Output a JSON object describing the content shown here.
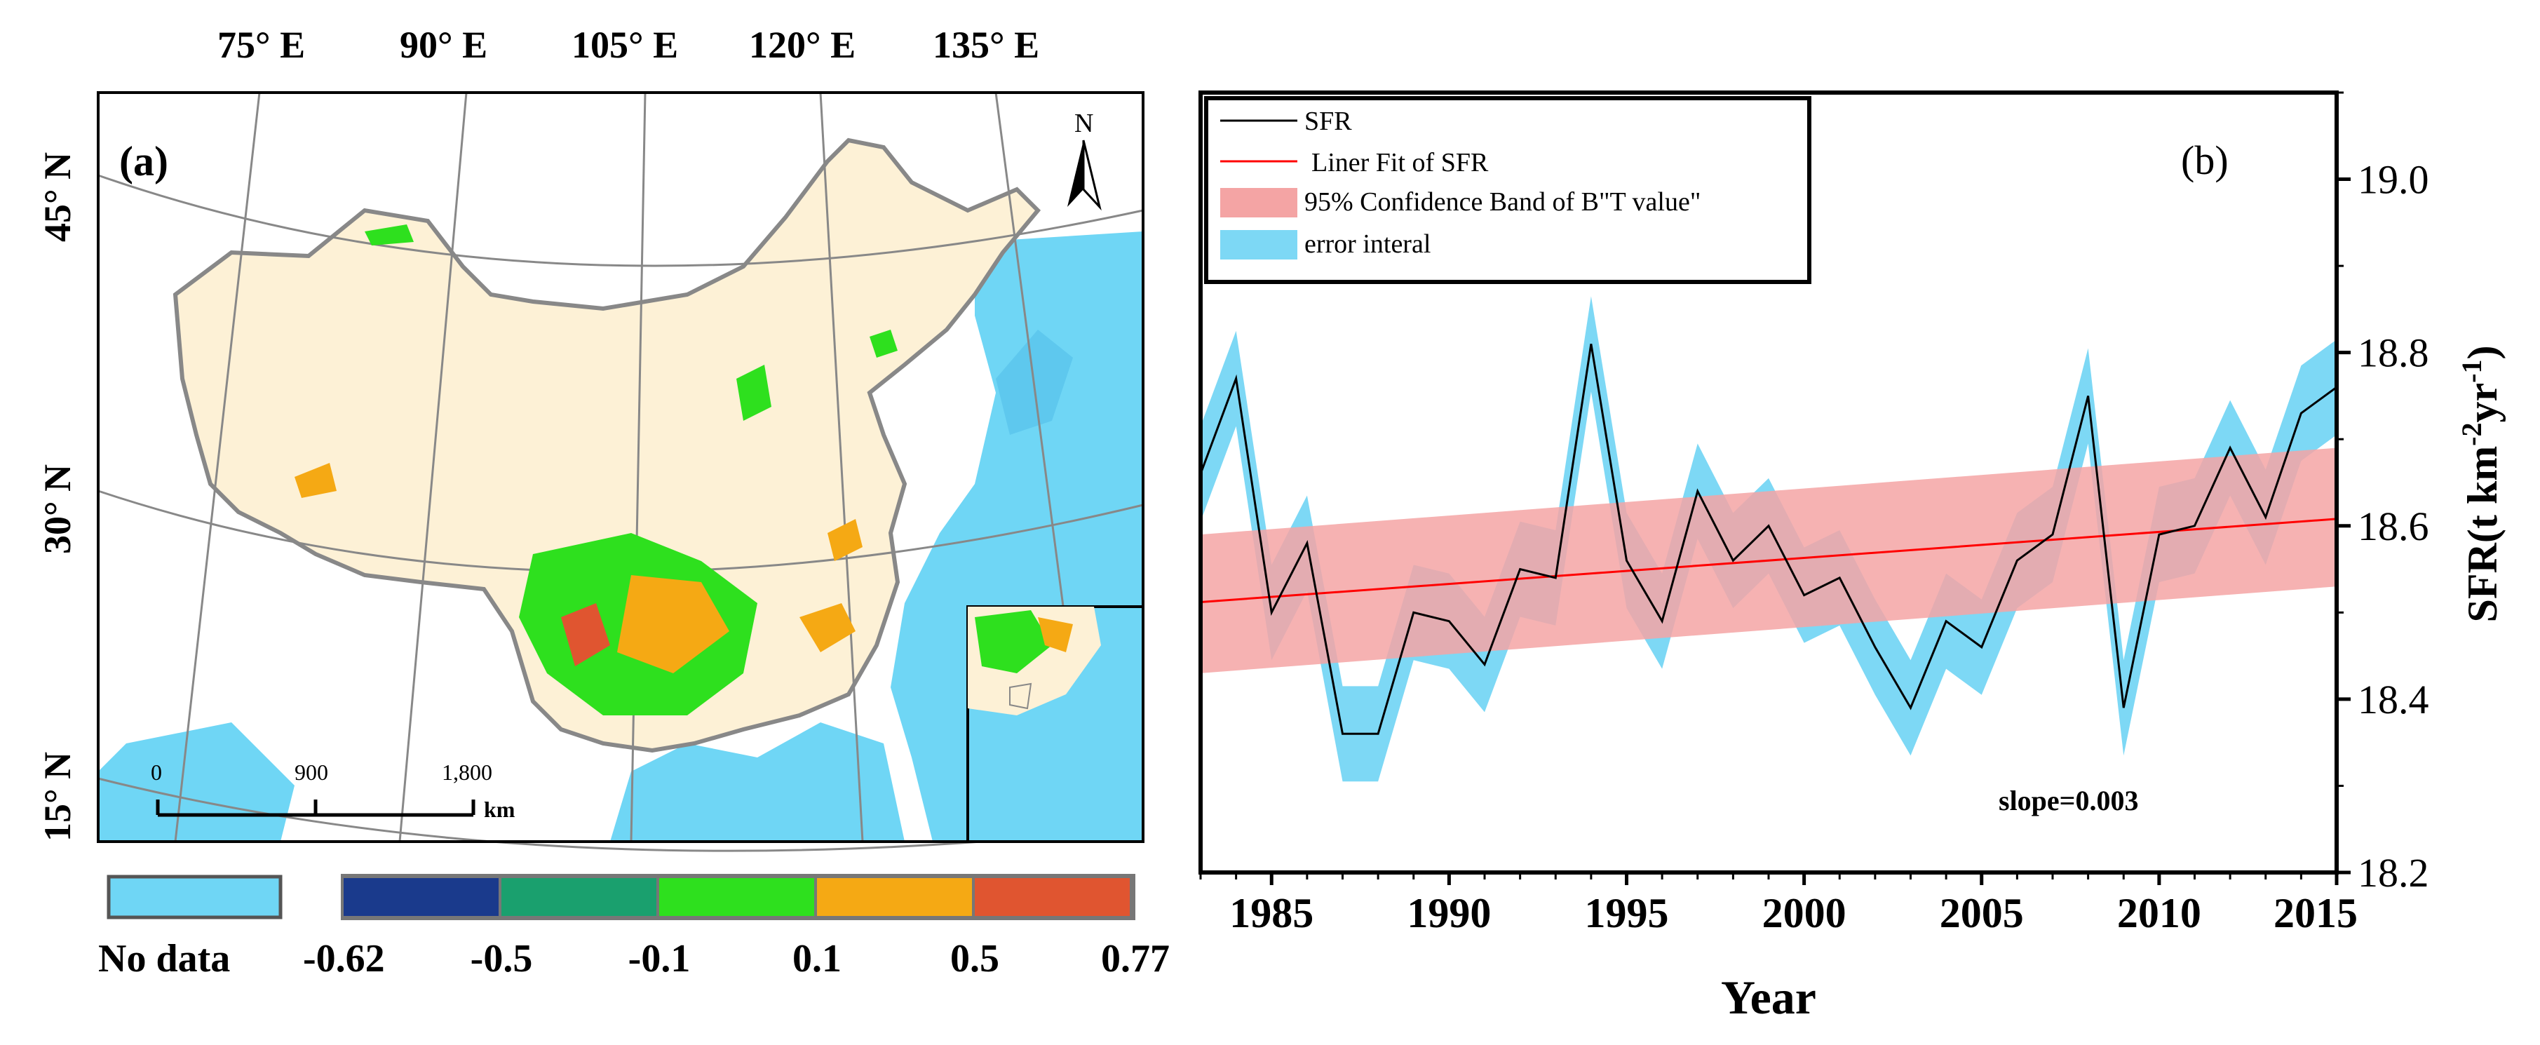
{
  "panel_a": {
    "label": "(a)",
    "north_label": "N",
    "longitude_labels": [
      "75° E",
      "90° E",
      "105° E",
      "120° E",
      "135° E"
    ],
    "latitude_labels": [
      "45° N",
      "30° N",
      "15° N"
    ],
    "scale_bar": {
      "ticks": [
        "0",
        "900",
        "1,800"
      ],
      "unit": "km"
    },
    "legend": {
      "no_data_label": "No data",
      "no_data_color": "#6fd6f5",
      "class_colors": [
        "#1a3a8c",
        "#1aa06e",
        "#2ee01e",
        "#f5a914",
        "#e05530"
      ],
      "break_labels": [
        "-0.62",
        "-0.5",
        "-0.1",
        "0.1",
        "0.5",
        "0.77"
      ]
    }
  },
  "chart_data": {
    "type": "line",
    "panel_label": "(b)",
    "xlabel": "Year",
    "ylabel": "SFR(t km-2yr-1)",
    "ylabel_parts": {
      "base": "SFR(t km",
      "sup1": "-2",
      "mid": "yr",
      "sup2": "-1",
      "end": ")"
    },
    "xlim": [
      1983,
      2015
    ],
    "ylim": [
      18.2,
      19.1
    ],
    "xticks": [
      1985,
      1990,
      1995,
      2000,
      2005,
      2010,
      2015
    ],
    "yticks": [
      18.2,
      18.4,
      18.6,
      18.8,
      19.0
    ],
    "ytick_labels": [
      "18.2",
      "18.4",
      "18.6",
      "18.8",
      "19.0"
    ],
    "x": [
      1983,
      1984,
      1985,
      1986,
      1987,
      1988,
      1989,
      1990,
      1991,
      1992,
      1993,
      1994,
      1995,
      1996,
      1997,
      1998,
      1999,
      2000,
      2001,
      2002,
      2003,
      2004,
      2005,
      2006,
      2007,
      2008,
      2009,
      2010,
      2011,
      2012,
      2013,
      2014,
      2015
    ],
    "series": [
      {
        "name": "SFR",
        "values": [
          18.66,
          18.77,
          18.5,
          18.58,
          18.36,
          18.36,
          18.5,
          18.49,
          18.44,
          18.55,
          18.54,
          18.81,
          18.56,
          18.49,
          18.64,
          18.56,
          18.6,
          18.52,
          18.54,
          18.46,
          18.39,
          18.49,
          18.46,
          18.56,
          18.59,
          18.75,
          18.39,
          18.59,
          18.6,
          18.69,
          18.61,
          18.73,
          18.76
        ],
        "color": "#000000"
      },
      {
        "name": "Liner Fit of SFR",
        "start": 18.512,
        "slope": 0.003,
        "color": "#ff0000"
      }
    ],
    "confidence_band": {
      "name": "95% Confidence Band of B\"T value\"",
      "lower_start": 18.43,
      "lower_end": 18.53,
      "upper_start": 18.59,
      "upper_end": 18.69,
      "color": "#f4a4a4"
    },
    "error_band": {
      "name": "error interal",
      "halfwidth": 0.055,
      "color": "#7dd8f5"
    },
    "annotation": "slope=0.003",
    "legend_labels": [
      "SFR",
      "Liner Fit of SFR",
      "95% Confidence Band of B\"T value\"",
      "error interal"
    ]
  }
}
